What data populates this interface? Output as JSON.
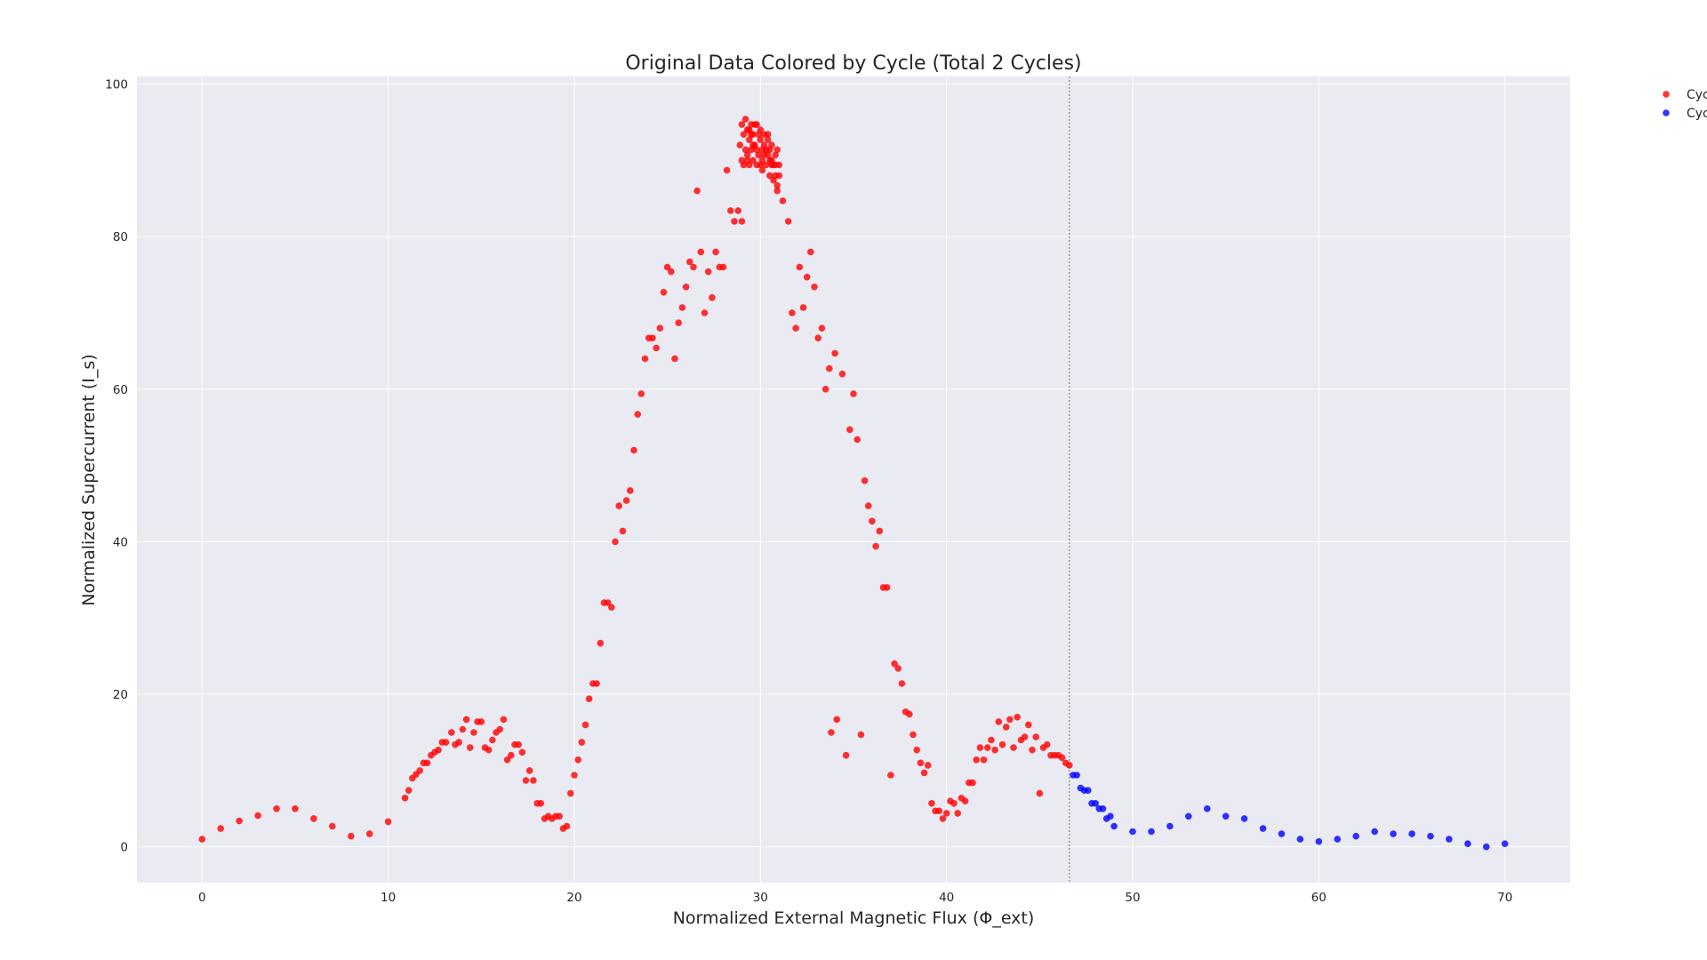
{
  "chart_data": {
    "type": "scatter",
    "title": "Original Data Colored by Cycle (Total 2 Cycles)",
    "xlabel": "Normalized External Magnetic Flux (Φ_ext)",
    "ylabel": "Normalized Supercurrent (I_s)",
    "xlim": [
      -3.5,
      73.5
    ],
    "ylim": [
      -4.7,
      101
    ],
    "xticks": [
      0,
      10,
      20,
      30,
      40,
      50,
      60,
      70
    ],
    "yticks": [
      0,
      20,
      40,
      60,
      80,
      100
    ],
    "grid": true,
    "background": "#eaeaf2",
    "legend_position": "upper-right-outside",
    "cycle_boundary_x": 46.6,
    "series": [
      {
        "name": "Cyc",
        "color": "#ff0000",
        "points": [
          [
            0,
            1.0
          ],
          [
            1,
            2.4
          ],
          [
            2,
            3.4
          ],
          [
            3,
            4.1
          ],
          [
            4,
            5.0
          ],
          [
            5,
            5.0
          ],
          [
            6,
            3.7
          ],
          [
            7,
            2.7
          ],
          [
            8,
            1.4
          ],
          [
            9,
            1.7
          ],
          [
            10,
            3.3
          ],
          [
            10.9,
            6.4
          ],
          [
            11.1,
            7.4
          ],
          [
            11.3,
            9.0
          ],
          [
            11.5,
            9.5
          ],
          [
            11.7,
            10.0
          ],
          [
            11.9,
            11.0
          ],
          [
            12.1,
            11.0
          ],
          [
            12.3,
            12.0
          ],
          [
            12.5,
            12.4
          ],
          [
            12.7,
            12.7
          ],
          [
            12.9,
            13.7
          ],
          [
            13.1,
            13.7
          ],
          [
            13.4,
            15.0
          ],
          [
            13.6,
            13.4
          ],
          [
            13.8,
            13.7
          ],
          [
            14.0,
            15.4
          ],
          [
            14.2,
            16.7
          ],
          [
            14.4,
            13.0
          ],
          [
            14.6,
            15.0
          ],
          [
            14.8,
            16.4
          ],
          [
            15.0,
            16.4
          ],
          [
            15.2,
            13.0
          ],
          [
            15.4,
            12.7
          ],
          [
            15.6,
            14.0
          ],
          [
            15.8,
            15.0
          ],
          [
            16.0,
            15.4
          ],
          [
            16.2,
            16.7
          ],
          [
            16.4,
            11.4
          ],
          [
            16.6,
            12.0
          ],
          [
            16.8,
            13.4
          ],
          [
            17.0,
            13.4
          ],
          [
            17.2,
            12.4
          ],
          [
            17.4,
            8.7
          ],
          [
            17.6,
            10.0
          ],
          [
            17.8,
            8.7
          ],
          [
            18.0,
            5.7
          ],
          [
            18.2,
            5.7
          ],
          [
            18.4,
            3.7
          ],
          [
            18.6,
            4.0
          ],
          [
            18.8,
            3.7
          ],
          [
            19.0,
            4.0
          ],
          [
            19.2,
            4.0
          ],
          [
            19.4,
            2.4
          ],
          [
            19.6,
            2.7
          ],
          [
            19.8,
            7.0
          ],
          [
            20.0,
            9.4
          ],
          [
            20.2,
            11.4
          ],
          [
            20.4,
            13.7
          ],
          [
            20.6,
            16.0
          ],
          [
            20.8,
            19.4
          ],
          [
            21.0,
            21.4
          ],
          [
            21.2,
            21.4
          ],
          [
            21.4,
            26.7
          ],
          [
            21.6,
            32.0
          ],
          [
            21.8,
            32.0
          ],
          [
            22.0,
            31.4
          ],
          [
            22.2,
            40.0
          ],
          [
            22.4,
            44.7
          ],
          [
            22.6,
            41.4
          ],
          [
            22.8,
            45.4
          ],
          [
            23.0,
            46.7
          ],
          [
            23.2,
            52.0
          ],
          [
            23.4,
            56.7
          ],
          [
            23.6,
            59.4
          ],
          [
            23.8,
            64.0
          ],
          [
            24.0,
            66.7
          ],
          [
            24.2,
            66.7
          ],
          [
            24.4,
            65.4
          ],
          [
            24.6,
            68.0
          ],
          [
            24.8,
            72.7
          ],
          [
            25.0,
            76.0
          ],
          [
            25.2,
            75.4
          ],
          [
            25.4,
            64.0
          ],
          [
            25.6,
            68.7
          ],
          [
            25.8,
            70.7
          ],
          [
            26.0,
            73.4
          ],
          [
            26.2,
            76.7
          ],
          [
            26.4,
            76.0
          ],
          [
            26.6,
            86.0
          ],
          [
            26.8,
            78.0
          ],
          [
            27.0,
            70.0
          ],
          [
            27.2,
            75.4
          ],
          [
            27.4,
            72.0
          ],
          [
            27.6,
            78.0
          ],
          [
            27.8,
            76.0
          ],
          [
            28.0,
            76.0
          ],
          [
            28.2,
            88.7
          ],
          [
            28.4,
            83.4
          ],
          [
            28.6,
            82.0
          ],
          [
            28.8,
            83.4
          ],
          [
            29.0,
            82.0
          ],
          [
            28.9,
            92.0
          ],
          [
            29.0,
            90.0
          ],
          [
            29.0,
            94.7
          ],
          [
            29.1,
            93.4
          ],
          [
            29.1,
            89.4
          ],
          [
            29.2,
            95.4
          ],
          [
            29.2,
            91.4
          ],
          [
            29.3,
            94.0
          ],
          [
            29.3,
            90.7
          ],
          [
            29.4,
            92.7
          ],
          [
            29.4,
            89.4
          ],
          [
            29.5,
            94.7
          ],
          [
            29.5,
            91.4
          ],
          [
            29.6,
            93.4
          ],
          [
            29.6,
            90.0
          ],
          [
            29.7,
            92.0
          ],
          [
            29.7,
            94.7
          ],
          [
            29.8,
            91.4
          ],
          [
            29.8,
            89.4
          ],
          [
            29.9,
            93.4
          ],
          [
            29.9,
            90.7
          ],
          [
            30.0,
            92.7
          ],
          [
            30.0,
            94.0
          ],
          [
            30.1,
            90.0
          ],
          [
            30.1,
            88.7
          ],
          [
            30.2,
            92.0
          ],
          [
            30.2,
            93.4
          ],
          [
            30.3,
            91.4
          ],
          [
            30.3,
            89.4
          ],
          [
            30.4,
            92.7
          ],
          [
            30.4,
            90.7
          ],
          [
            30.5,
            88.0
          ],
          [
            30.5,
            91.4
          ],
          [
            30.6,
            90.0
          ],
          [
            30.6,
            92.0
          ],
          [
            30.7,
            89.4
          ],
          [
            30.7,
            87.4
          ],
          [
            30.8,
            90.7
          ],
          [
            30.8,
            88.0
          ],
          [
            30.9,
            91.4
          ],
          [
            30.9,
            86.7
          ],
          [
            31.0,
            89.4
          ],
          [
            31.0,
            88.0
          ],
          [
            29.4,
            94.0
          ],
          [
            29.8,
            94.7
          ],
          [
            30.2,
            90.7
          ],
          [
            30.6,
            89.4
          ],
          [
            29.6,
            92.0
          ],
          [
            30.0,
            89.4
          ],
          [
            30.4,
            93.4
          ],
          [
            30.8,
            89.4
          ],
          [
            30.9,
            86.0
          ],
          [
            29.5,
            93.4
          ],
          [
            30.1,
            91.4
          ],
          [
            30.5,
            90.0
          ],
          [
            29.3,
            90.0
          ],
          [
            31.2,
            84.7
          ],
          [
            31.5,
            82.0
          ],
          [
            31.7,
            70.0
          ],
          [
            31.9,
            68.0
          ],
          [
            32.1,
            76.0
          ],
          [
            32.3,
            70.7
          ],
          [
            32.5,
            74.7
          ],
          [
            32.7,
            78.0
          ],
          [
            32.9,
            73.4
          ],
          [
            33.1,
            66.7
          ],
          [
            33.3,
            68.0
          ],
          [
            33.5,
            60.0
          ],
          [
            33.7,
            62.7
          ],
          [
            34.0,
            64.7
          ],
          [
            34.4,
            62.0
          ],
          [
            35.0,
            59.4
          ],
          [
            35.2,
            53.4
          ],
          [
            34.8,
            54.7
          ],
          [
            35.6,
            48.0
          ],
          [
            35.8,
            44.7
          ],
          [
            36.0,
            42.7
          ],
          [
            36.2,
            39.4
          ],
          [
            36.4,
            41.4
          ],
          [
            36.6,
            34.0
          ],
          [
            36.8,
            34.0
          ],
          [
            37.0,
            9.4
          ],
          [
            37.2,
            24.0
          ],
          [
            37.4,
            23.4
          ],
          [
            37.6,
            21.4
          ],
          [
            37.8,
            17.7
          ],
          [
            38.0,
            17.4
          ],
          [
            38.2,
            14.7
          ],
          [
            38.4,
            12.7
          ],
          [
            38.6,
            11.0
          ],
          [
            38.8,
            9.7
          ],
          [
            39.0,
            10.7
          ],
          [
            39.2,
            5.7
          ],
          [
            39.4,
            4.7
          ],
          [
            39.6,
            4.7
          ],
          [
            39.8,
            3.7
          ],
          [
            40.0,
            4.4
          ],
          [
            40.2,
            6.0
          ],
          [
            40.4,
            5.7
          ],
          [
            40.6,
            4.4
          ],
          [
            40.8,
            6.4
          ],
          [
            41.0,
            6.0
          ],
          [
            41.2,
            8.4
          ],
          [
            41.4,
            8.4
          ],
          [
            41.6,
            11.4
          ],
          [
            41.8,
            13.0
          ],
          [
            42.0,
            11.4
          ],
          [
            42.2,
            13.0
          ],
          [
            42.4,
            14.0
          ],
          [
            42.6,
            12.7
          ],
          [
            42.8,
            16.4
          ],
          [
            43.0,
            13.4
          ],
          [
            43.2,
            15.7
          ],
          [
            43.4,
            16.7
          ],
          [
            43.6,
            13.0
          ],
          [
            43.8,
            17.0
          ],
          [
            44.0,
            14.0
          ],
          [
            44.2,
            14.4
          ],
          [
            44.4,
            16.0
          ],
          [
            44.6,
            12.7
          ],
          [
            44.8,
            14.4
          ],
          [
            45.0,
            7.0
          ],
          [
            45.2,
            13.0
          ],
          [
            45.4,
            13.4
          ],
          [
            45.6,
            12.0
          ],
          [
            45.8,
            12.0
          ],
          [
            46.0,
            12.0
          ],
          [
            46.2,
            11.7
          ],
          [
            46.4,
            11.0
          ],
          [
            46.6,
            10.7
          ],
          [
            33.8,
            15.0
          ],
          [
            34.1,
            16.7
          ],
          [
            34.6,
            12.0
          ],
          [
            35.4,
            14.7
          ]
        ]
      },
      {
        "name": "Cyc",
        "color": "#0000ff",
        "points": [
          [
            46.8,
            9.4
          ],
          [
            47.0,
            9.4
          ],
          [
            47.2,
            7.7
          ],
          [
            47.4,
            7.4
          ],
          [
            47.6,
            7.4
          ],
          [
            47.8,
            5.7
          ],
          [
            48.0,
            5.7
          ],
          [
            48.2,
            5.0
          ],
          [
            48.4,
            5.0
          ],
          [
            48.6,
            3.7
          ],
          [
            48.8,
            4.0
          ],
          [
            49.0,
            2.7
          ],
          [
            50,
            2.0
          ],
          [
            51,
            2.0
          ],
          [
            52,
            2.7
          ],
          [
            53,
            4.0
          ],
          [
            54,
            5.0
          ],
          [
            55,
            4.0
          ],
          [
            56,
            3.7
          ],
          [
            57,
            2.4
          ],
          [
            58,
            1.7
          ],
          [
            59,
            1.0
          ],
          [
            60,
            0.7
          ],
          [
            61,
            1.0
          ],
          [
            62,
            1.4
          ],
          [
            63,
            2.0
          ],
          [
            64,
            1.7
          ],
          [
            65,
            1.7
          ],
          [
            66,
            1.4
          ],
          [
            67,
            1.0
          ],
          [
            68,
            0.4
          ],
          [
            69,
            0.0
          ],
          [
            70,
            0.4
          ]
        ]
      }
    ]
  }
}
